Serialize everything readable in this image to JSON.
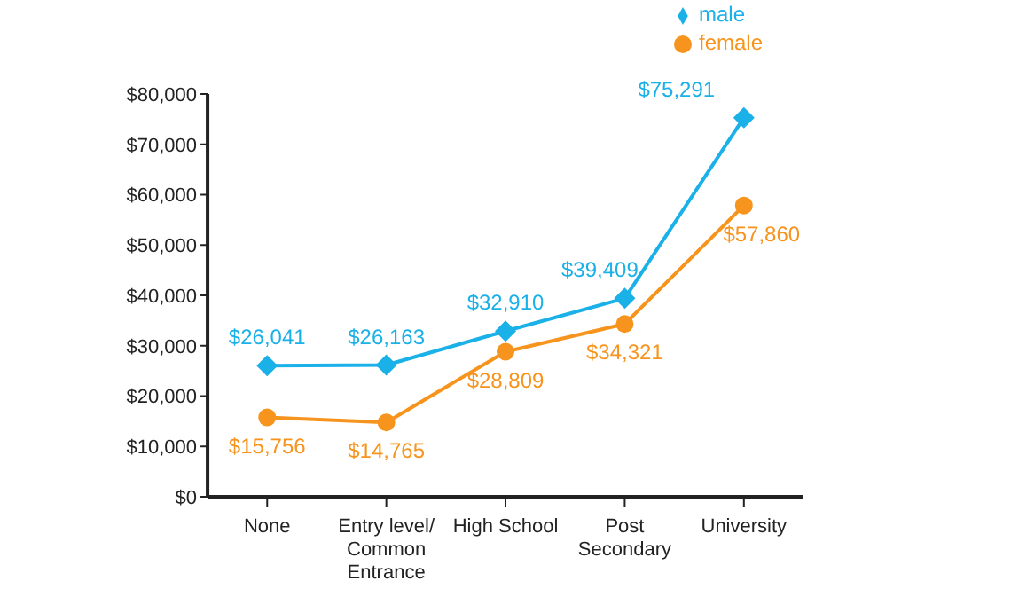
{
  "chart_data": {
    "type": "line",
    "categories": [
      "None",
      "Entry level/ Common Entrance",
      "High School",
      "Post Secondary",
      "University"
    ],
    "series": [
      {
        "name": "male",
        "color": "#1ab0e8",
        "marker": "diamond",
        "values": [
          26041,
          26163,
          32910,
          39409,
          75291
        ],
        "value_labels": [
          "$26,041",
          "$26,163",
          "$32,910",
          "$39,409",
          "$75,291"
        ]
      },
      {
        "name": "female",
        "color": "#f7941d",
        "marker": "circle",
        "values": [
          15756,
          14765,
          28809,
          34321,
          57860
        ],
        "value_labels": [
          "$15,756",
          "$14,765",
          "$28,809",
          "$34,321",
          "$57,860"
        ]
      }
    ],
    "ylim": [
      0,
      80000
    ],
    "yticks": [
      {
        "value": 0,
        "label": "$0"
      },
      {
        "value": 10000,
        "label": "$10,000"
      },
      {
        "value": 20000,
        "label": "$20,000"
      },
      {
        "value": 30000,
        "label": "$30,000"
      },
      {
        "value": 40000,
        "label": "$40,000"
      },
      {
        "value": 50000,
        "label": "$50,000"
      },
      {
        "value": 60000,
        "label": "$60,000"
      },
      {
        "value": 70000,
        "label": "$70,000"
      },
      {
        "value": 80000,
        "label": "$80,000"
      }
    ],
    "grid": false,
    "legend": "top right",
    "line_style": "solid"
  }
}
